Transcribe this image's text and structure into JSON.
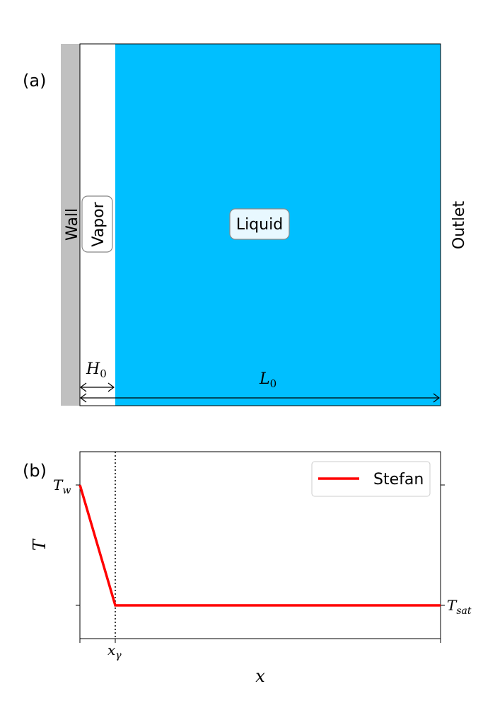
{
  "panel_a": {
    "label": "(a)",
    "wall_label": "Wall",
    "vapor_label": "Vapor",
    "liquid_label": "Liquid",
    "outlet_label": "Outlet",
    "h0_label": "H",
    "h0_sub": "0",
    "l0_label": "L",
    "l0_sub": "0",
    "colors": {
      "wall": "#c0c0c0",
      "vapor": "#ffffff",
      "liquid": "#00bfff",
      "liquid_box": "#e8f8ff"
    }
  },
  "panel_b": {
    "label": "(b)",
    "ylabel": "T",
    "xlabel": "x",
    "tw_label": "T",
    "tw_sub": "w",
    "tsat_label": "T",
    "tsat_sub": "sat",
    "xgamma_label": "x",
    "xgamma_sub": "γ",
    "legend_label": "Stefan",
    "colors": {
      "stefan": "#ff0000"
    }
  }
}
